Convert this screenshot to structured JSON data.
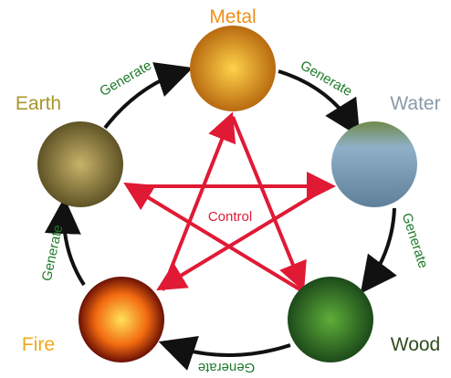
{
  "nodes": [
    {
      "label": "Metal"
    },
    {
      "label": "Water"
    },
    {
      "label": "Wood"
    },
    {
      "label": "Fire"
    },
    {
      "label": "Earth"
    }
  ],
  "generate": [
    "Generate",
    "Generate",
    "Generate",
    "Generate",
    "Generate"
  ],
  "control": "Control"
}
